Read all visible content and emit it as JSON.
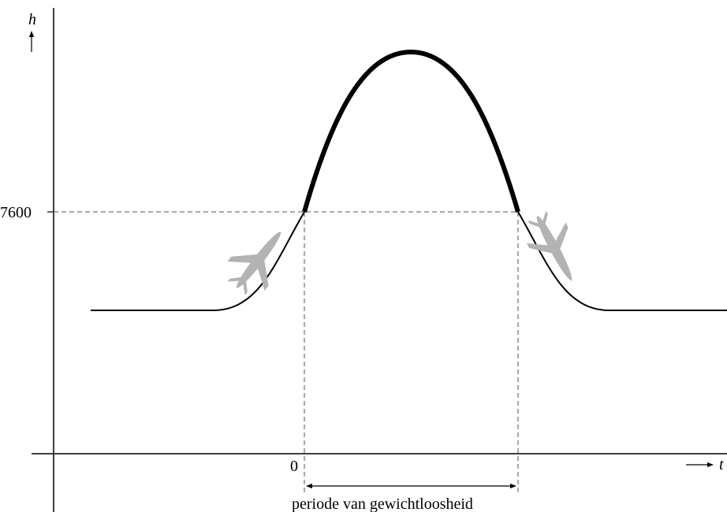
{
  "axes": {
    "y_label": "h",
    "x_label": "t",
    "y_tick_label": "7600",
    "x_tick_label": "0"
  },
  "annotation": {
    "period_label": "periode van gewichtloosheid"
  },
  "icons": {
    "plane_ascending": "airplane-climbing-icon",
    "plane_descending": "airplane-diving-icon"
  },
  "colors": {
    "line": "#000000",
    "plane": "#b3b3b3"
  }
}
